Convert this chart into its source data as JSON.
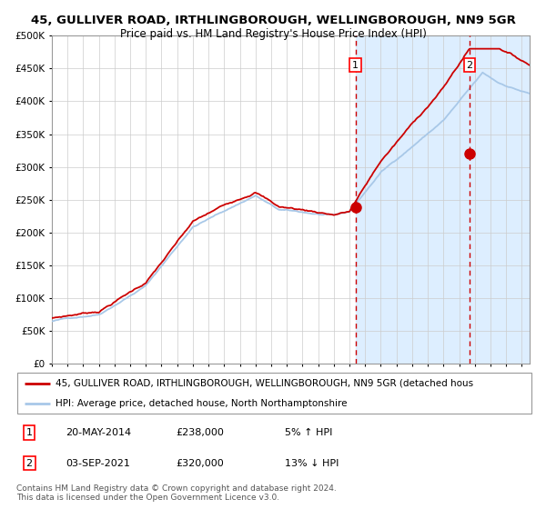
{
  "title": "45, GULLIVER ROAD, IRTHLINGBOROUGH, WELLINGBOROUGH, NN9 5GR",
  "subtitle": "Price paid vs. HM Land Registry's House Price Index (HPI)",
  "ylim": [
    0,
    500000
  ],
  "yticks": [
    0,
    50000,
    100000,
    150000,
    200000,
    250000,
    300000,
    350000,
    400000,
    450000,
    500000
  ],
  "ytick_labels": [
    "£0",
    "£50K",
    "£100K",
    "£150K",
    "£200K",
    "£250K",
    "£300K",
    "£350K",
    "£400K",
    "£450K",
    "£500K"
  ],
  "xlim_start": 1995.0,
  "xlim_end": 2025.5,
  "hpi_color": "#a8c8e8",
  "price_color": "#cc0000",
  "marker_color": "#cc0000",
  "shade_color": "#ddeeff",
  "grid_color": "#cccccc",
  "vline_color": "#cc0000",
  "transaction1_x": 2014.38,
  "transaction1_y": 238000,
  "transaction2_x": 2021.67,
  "transaction2_y": 320000,
  "legend_line1": "45, GULLIVER ROAD, IRTHLINGBOROUGH, WELLINGBOROUGH, NN9 5GR (detached hous",
  "legend_line2": "HPI: Average price, detached house, North Northamptonshire",
  "table_row1_num": "1",
  "table_row1_date": "20-MAY-2014",
  "table_row1_price": "£238,000",
  "table_row1_hpi": "5% ↑ HPI",
  "table_row2_num": "2",
  "table_row2_date": "03-SEP-2021",
  "table_row2_price": "£320,000",
  "table_row2_hpi": "13% ↓ HPI",
  "footnote1": "Contains HM Land Registry data © Crown copyright and database right 2024.",
  "footnote2": "This data is licensed under the Open Government Licence v3.0.",
  "title_fontsize": 9.5,
  "subtitle_fontsize": 8.5,
  "tick_fontsize": 7.5,
  "legend_fontsize": 7.5,
  "table_fontsize": 8,
  "footnote_fontsize": 6.5
}
